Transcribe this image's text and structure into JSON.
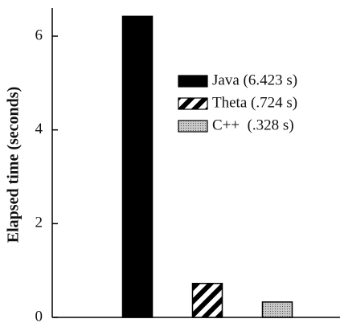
{
  "chart_data": {
    "type": "bar",
    "y_label": "Elapsed time (seconds)",
    "categories": [
      null,
      null,
      null
    ],
    "series": [
      {
        "name": "Java (6.423 s)",
        "color": "#000000",
        "values": [
          6.423,
          null,
          null
        ]
      },
      {
        "name": "Theta (.724 s)",
        "color": "#ffffff",
        "pattern": "hatch",
        "values": [
          null,
          0.724,
          null
        ]
      },
      {
        "name": "C++  (.328 s)",
        "color": "#b0b0b0",
        "pattern": "stipple",
        "values": [
          null,
          null,
          0.328
        ]
      }
    ],
    "ylim": [
      0,
      6.6
    ],
    "yticks": [
      0,
      2,
      4,
      6
    ],
    "legend": "upper-right"
  }
}
